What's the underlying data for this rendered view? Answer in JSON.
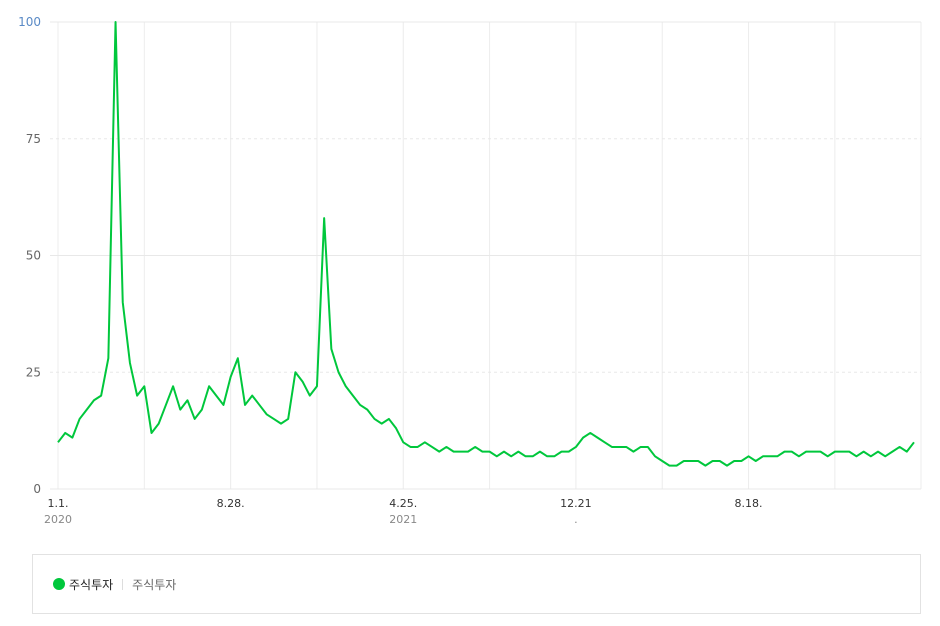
{
  "chart_data": {
    "type": "line",
    "title": "",
    "xlabel": "",
    "ylabel": "",
    "ylim": [
      0,
      100
    ],
    "yticks": [
      "0",
      "25",
      "50",
      "75",
      "100"
    ],
    "xticks": [
      {
        "label": "1.1.",
        "year": "2020",
        "day": 0
      },
      {
        "label": "8.28.",
        "year": "",
        "day": 240
      },
      {
        "label": "4.25.",
        "year": "2021",
        "day": 480
      },
      {
        "label": "12.21",
        "year": ".",
        "day": 720
      },
      {
        "label": "8.18.",
        "year": "",
        "day": 960
      }
    ],
    "x_range_days": [
      0,
      1190
    ],
    "grid": true,
    "series": [
      {
        "name": "주식투자",
        "keywords": "주식투자",
        "color": "#00c73c",
        "step_days": 10,
        "values": [
          10,
          12,
          11,
          15,
          17,
          19,
          20,
          28,
          100,
          40,
          27,
          20,
          22,
          12,
          14,
          18,
          22,
          17,
          19,
          15,
          17,
          22,
          20,
          18,
          24,
          28,
          18,
          20,
          18,
          16,
          15,
          14,
          15,
          25,
          23,
          20,
          22,
          58,
          30,
          25,
          22,
          20,
          18,
          17,
          15,
          14,
          15,
          13,
          10,
          9,
          9,
          10,
          9,
          8,
          9,
          8,
          8,
          8,
          9,
          8,
          8,
          7,
          8,
          7,
          8,
          7,
          7,
          8,
          7,
          7,
          8,
          8,
          9,
          11,
          12,
          11,
          10,
          9,
          9,
          9,
          8,
          9,
          9,
          7,
          6,
          5,
          5,
          6,
          6,
          6,
          5,
          6,
          6,
          5,
          6,
          6,
          7,
          6,
          7,
          7,
          7,
          8,
          8,
          7,
          8,
          8,
          8,
          7,
          8,
          8,
          8,
          7,
          8,
          7,
          8,
          7,
          8,
          9,
          8,
          10
        ]
      }
    ],
    "legend": "bottom-left"
  }
}
